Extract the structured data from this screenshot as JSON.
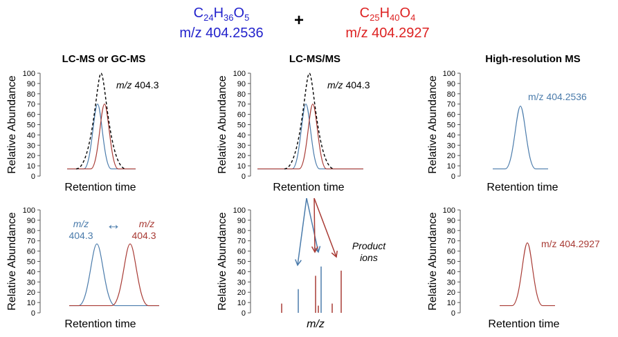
{
  "header": {
    "compound_a": {
      "base": "C",
      "s1": "24",
      "h": "H",
      "s2": "36",
      "o": "O",
      "s3": "5",
      "mz": "m/z 404.2536",
      "color": "#2222cc"
    },
    "plus": "+",
    "compound_b": {
      "base": "C",
      "s1": "25",
      "h": "H",
      "s2": "40",
      "o": "O",
      "s3": "4",
      "mz": "m/z 404.2927",
      "color": "#dd2222"
    }
  },
  "columns": [
    "LC-MS or GC-MS",
    "LC-MS/MS",
    "High-resolution MS"
  ],
  "colors": {
    "blue": "#4a7bab",
    "red": "#a83a34",
    "black": "#000000",
    "axis": "#555555"
  },
  "chart_data": [
    {
      "id": "lcms-top",
      "type": "line",
      "ylabel": "Relative Abundance",
      "xlabel": "Retention time",
      "ylim": [
        0,
        100
      ],
      "yticks": [
        0,
        10,
        20,
        30,
        40,
        50,
        60,
        70,
        80,
        90,
        100
      ],
      "annotation": {
        "italic": "m/z",
        "text": " 404.3"
      },
      "series": [
        {
          "color": "blue",
          "style": "solid",
          "peak_height": 70
        },
        {
          "color": "red",
          "style": "solid",
          "peak_height": 70
        },
        {
          "color": "black",
          "style": "dashed",
          "peak_height": 100
        }
      ]
    },
    {
      "id": "lcmsms-top",
      "type": "line",
      "ylabel": "Relative Abundance",
      "xlabel": "Retention time",
      "ylim": [
        0,
        100
      ],
      "yticks": [
        0,
        10,
        20,
        30,
        40,
        50,
        60,
        70,
        80,
        90,
        100
      ],
      "annotation": {
        "italic": "m/z",
        "text": " 404.3"
      },
      "series": [
        {
          "color": "blue",
          "style": "solid",
          "peak_height": 70
        },
        {
          "color": "red",
          "style": "solid",
          "peak_height": 70
        },
        {
          "color": "black",
          "style": "dashed",
          "peak_height": 100
        }
      ]
    },
    {
      "id": "hrms-top",
      "type": "line",
      "ylabel": "Relative Abundance",
      "xlabel": "Retention time",
      "ylim": [
        0,
        100
      ],
      "yticks": [
        0,
        10,
        20,
        30,
        40,
        50,
        60,
        70,
        80,
        90,
        100
      ],
      "annotation": {
        "text": "m/z 404.2536",
        "color": "blue"
      },
      "series": [
        {
          "color": "blue",
          "style": "solid",
          "peak_height": 68
        }
      ]
    },
    {
      "id": "lcms-bottom",
      "type": "line",
      "ylabel": "Relative Abundance",
      "xlabel": "Retention time",
      "ylim": [
        0,
        100
      ],
      "yticks": [
        0,
        10,
        20,
        30,
        40,
        50,
        60,
        70,
        80,
        90,
        100
      ],
      "labels": [
        {
          "line1": "m/z",
          "line2": "404.3",
          "color": "blue"
        },
        {
          "line1": "m/z",
          "line2": "404.3",
          "color": "red"
        }
      ],
      "arrow": "↔",
      "series": [
        {
          "color": "blue",
          "style": "solid",
          "peak_height": 67
        },
        {
          "color": "red",
          "style": "solid",
          "peak_height": 67
        }
      ]
    },
    {
      "id": "lcmsms-bottom",
      "type": "bar",
      "ylabel": "Relative Abundance",
      "xlabel": "m/z",
      "ylim": [
        0,
        100
      ],
      "yticks": [
        0,
        10,
        20,
        30,
        40,
        50,
        60,
        70,
        80,
        90,
        100
      ],
      "annotation": {
        "line1": "Product",
        "line2": "ions"
      },
      "bars": [
        {
          "color": "red",
          "value": 9
        },
        {
          "color": "blue",
          "value": 23
        },
        {
          "color": "red",
          "value": 36
        },
        {
          "color": "blue",
          "value": 45
        },
        {
          "color": "red",
          "value": 7
        },
        {
          "color": "red",
          "value": 9
        },
        {
          "color": "red",
          "value": 41
        }
      ]
    },
    {
      "id": "hrms-bottom",
      "type": "line",
      "ylabel": "Relative Abundance",
      "xlabel": "Retention time",
      "ylim": [
        0,
        100
      ],
      "yticks": [
        0,
        10,
        20,
        30,
        40,
        50,
        60,
        70,
        80,
        90,
        100
      ],
      "annotation": {
        "text": "m/z 404.2927",
        "color": "red"
      },
      "series": [
        {
          "color": "red",
          "style": "solid",
          "peak_height": 68
        }
      ]
    }
  ]
}
